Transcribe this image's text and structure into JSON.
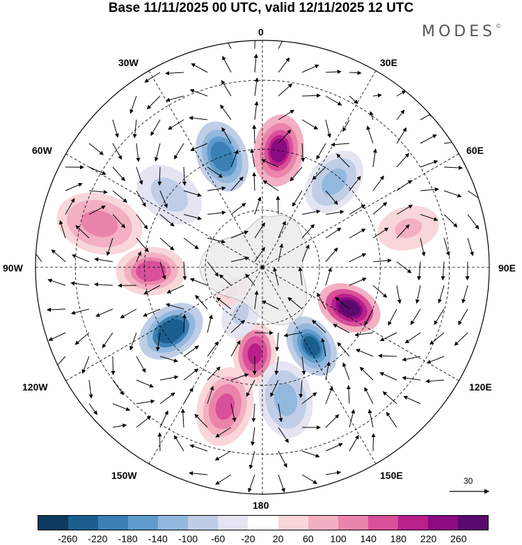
{
  "title": "Base 11/11/2025 00 UTC, valid 12/11/2025 12 UTC",
  "logo": "MODES",
  "logo_mark": "©",
  "longitude_labels": {
    "lon_0": "0",
    "lon_30e": "30E",
    "lon_60e": "60E",
    "lon_90e": "90E",
    "lon_120e": "120E",
    "lon_150e": "150E",
    "lon_180": "180",
    "lon_150w": "150W",
    "lon_120w": "120W",
    "lon_90w": "90W",
    "lon_60w": "60W",
    "lon_30w": "30W"
  },
  "reference_vector": {
    "label": "30"
  },
  "colorbar": {
    "colors": [
      "#0d3a5c",
      "#1b5f8f",
      "#3a80b4",
      "#5f9ccc",
      "#93b8de",
      "#bfcde6",
      "#e4e4f2",
      "#ffffff",
      "#f8d6da",
      "#f3b0c2",
      "#ea84ab",
      "#d94f9a",
      "#b8208a",
      "#8c0a82",
      "#5a0a6e"
    ],
    "labels": [
      "-260",
      "-220",
      "-180",
      "-140",
      "-100",
      "-60",
      "-20",
      "20",
      "60",
      "100",
      "140",
      "180",
      "220",
      "260"
    ]
  },
  "chart_data": {
    "type": "polar-stereographic anomaly map",
    "projection": "South polar stereographic",
    "field": "geopotential anomaly (shaded) with wind vectors",
    "levels": [
      -260,
      -220,
      -180,
      -140,
      -100,
      -60,
      -20,
      20,
      60,
      100,
      140,
      180,
      220,
      260
    ],
    "reference_wind_vector": 30,
    "anomaly_centers": [
      {
        "name": "positive-0E",
        "lon": 8,
        "lat": -50,
        "value": 230
      },
      {
        "name": "negative-20W",
        "lon": -20,
        "lat": -50,
        "value": -210
      },
      {
        "name": "negative-40E",
        "lon": 40,
        "lat": -52,
        "value": -130
      },
      {
        "name": "negative-55W",
        "lon": -52,
        "lat": -50,
        "value": -90
      },
      {
        "name": "positive-75W",
        "lon": -75,
        "lat": -35,
        "value": 130
      },
      {
        "name": "positive-90W",
        "lon": -92,
        "lat": -52,
        "value": 160
      },
      {
        "name": "positive-70E",
        "lon": 75,
        "lat": -40,
        "value": 60
      },
      {
        "name": "positive-115E",
        "lon": 115,
        "lat": -57,
        "value": 270
      },
      {
        "name": "negative-145E",
        "lon": 148,
        "lat": -58,
        "value": -240
      },
      {
        "name": "positive-175W",
        "lon": -175,
        "lat": -60,
        "value": 190
      },
      {
        "name": "positive-165W",
        "lon": -165,
        "lat": -42,
        "value": 150
      },
      {
        "name": "negative-125W",
        "lon": -125,
        "lat": -52,
        "value": -250
      },
      {
        "name": "negative-155W",
        "lon": -155,
        "lat": -72,
        "value": -80
      },
      {
        "name": "negative-170E",
        "lon": 170,
        "lat": -45,
        "value": -130
      },
      {
        "name": "positive-125W",
        "lon": -128,
        "lat": -76,
        "value": 60
      }
    ]
  }
}
